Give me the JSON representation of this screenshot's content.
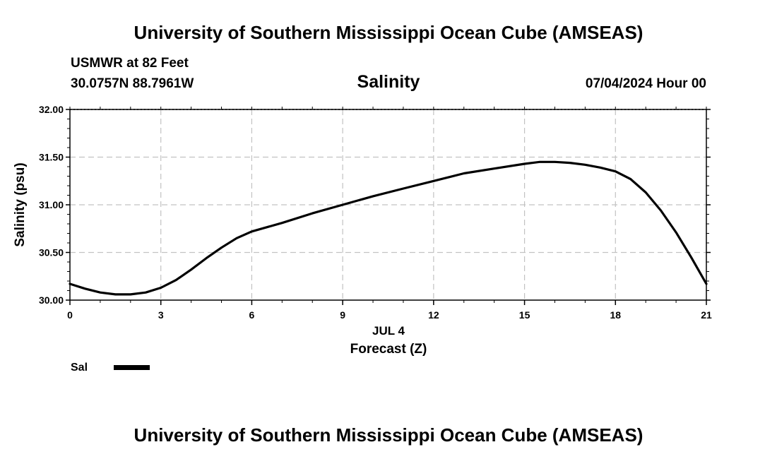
{
  "header": {
    "top_title": "University of Southern Mississippi Ocean Cube (AMSEAS)",
    "station": "USMWR at 82 Feet",
    "coords": "30.0757N  88.7961W",
    "timestamp": "07/04/2024 Hour 00",
    "bottom_title": "University of Southern Mississippi Ocean Cube (AMSEAS)"
  },
  "chart_data": {
    "type": "line",
    "title": "Salinity",
    "xlabel": "Forecast (Z)",
    "ylabel": "Salinity (psu)",
    "date_label": "JUL 4",
    "xlim": [
      0,
      21
    ],
    "ylim": [
      30.0,
      32.0
    ],
    "x_ticks": [
      0,
      3,
      6,
      9,
      12,
      15,
      18,
      21
    ],
    "x_tick_labels": [
      "0",
      "3",
      "6",
      "9",
      "12",
      "15",
      "18",
      "21"
    ],
    "y_ticks": [
      30.0,
      30.5,
      31.0,
      31.5,
      32.0
    ],
    "y_tick_labels": [
      "30.00",
      "30.50",
      "31.00",
      "31.50",
      "32.00"
    ],
    "grid": true,
    "series": [
      {
        "name": "Sal",
        "color": "#000000",
        "x": [
          0,
          0.5,
          1,
          1.5,
          2,
          2.5,
          3,
          3.5,
          4,
          4.5,
          5,
          5.5,
          6,
          7,
          8,
          9,
          10,
          11,
          12,
          12.5,
          13,
          14,
          15,
          15.5,
          16,
          16.5,
          17,
          17.5,
          18,
          18.5,
          19,
          19.5,
          20,
          20.5,
          21
        ],
        "y": [
          30.17,
          30.12,
          30.08,
          30.06,
          30.06,
          30.08,
          30.13,
          30.21,
          30.32,
          30.44,
          30.55,
          30.65,
          30.72,
          30.81,
          30.91,
          31.0,
          31.09,
          31.17,
          31.25,
          31.29,
          31.33,
          31.38,
          31.43,
          31.45,
          31.45,
          31.44,
          31.42,
          31.39,
          31.35,
          31.27,
          31.13,
          30.94,
          30.71,
          30.45,
          30.17
        ]
      }
    ],
    "legend": {
      "placement": "bottom-left",
      "label": "Sal"
    }
  }
}
